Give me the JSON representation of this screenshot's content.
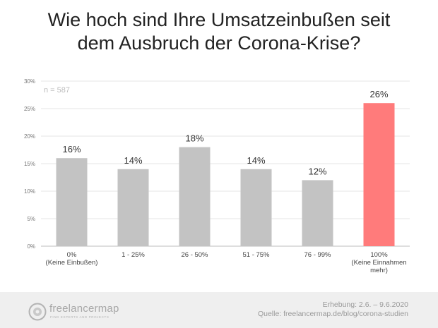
{
  "title": {
    "line1": "Wie hoch sind Ihre Umsatzeinbußen seit",
    "line2": "dem Ausbruch der Corona-Krise?"
  },
  "note": "n = 587",
  "colors": {
    "default_bar": "#c3c3c3",
    "highlight_bar": "#ff7b7b",
    "grid": "#e6e6e6"
  },
  "chart_data": {
    "type": "bar",
    "categories": [
      [
        "0%",
        "(Keine Einbußen)"
      ],
      [
        "1 - 25%"
      ],
      [
        "26 - 50%"
      ],
      [
        "51 - 75%"
      ],
      [
        "76 - 99%"
      ],
      [
        "100%",
        "(Keine Einnahmen",
        "mehr)"
      ]
    ],
    "values": [
      16,
      14,
      18,
      14,
      12,
      26
    ],
    "value_labels": [
      "16%",
      "14%",
      "18%",
      "14%",
      "12%",
      "26%"
    ],
    "highlight_index": 5,
    "yticks": [
      0,
      5,
      10,
      15,
      20,
      25,
      30
    ],
    "ytick_labels": [
      "0%",
      "5%",
      "10%",
      "15%",
      "20%",
      "25%",
      "30%"
    ],
    "ylim": [
      0,
      30
    ],
    "grid": true
  },
  "footer": {
    "logo_name": "freelancermap",
    "logo_tagline": "FIND EXPERTS AND PROJECTS",
    "survey_period": "Erhebung: 2.6. – 9.6.2020",
    "source": "Quelle: freelancermap.de/blog/corona-studien"
  }
}
